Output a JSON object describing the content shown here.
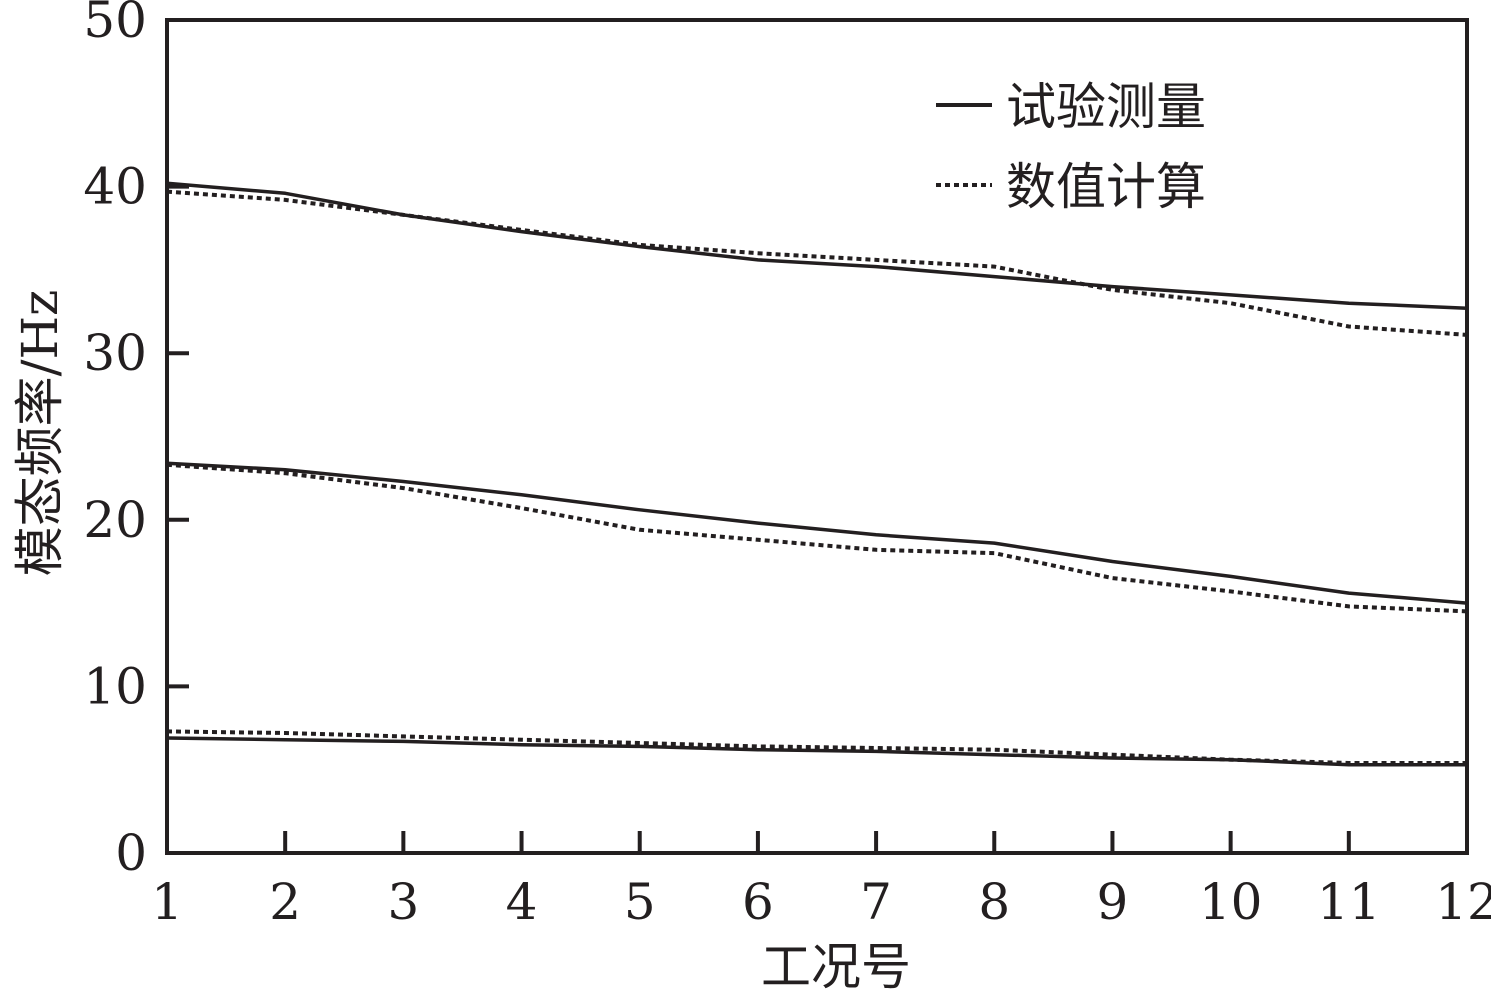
{
  "chart_data": {
    "type": "line",
    "title": "",
    "xlabel": "工况号",
    "ylabel": "模态频率/Hz",
    "xlim": [
      1,
      12
    ],
    "ylim": [
      0,
      50
    ],
    "x_ticks": [
      1,
      2,
      3,
      4,
      5,
      6,
      7,
      8,
      9,
      10,
      11,
      12
    ],
    "y_ticks": [
      0,
      10,
      20,
      30,
      40,
      50
    ],
    "grid": false,
    "legend_position": "top-right",
    "legend": [
      {
        "label": "试验测量",
        "style": "solid"
      },
      {
        "label": "数值计算",
        "style": "dotted"
      }
    ],
    "x": [
      1,
      2,
      3,
      4,
      5,
      6,
      7,
      8,
      9,
      10,
      11,
      12
    ],
    "series": [
      {
        "legend": "试验测量",
        "mode": "mode-1",
        "style": "solid",
        "values": [
          6.9,
          6.8,
          6.7,
          6.5,
          6.4,
          6.2,
          6.1,
          5.9,
          5.7,
          5.6,
          5.3,
          5.3
        ]
      },
      {
        "legend": "数值计算",
        "mode": "mode-1",
        "style": "dotted",
        "values": [
          7.3,
          7.2,
          7.0,
          6.8,
          6.6,
          6.4,
          6.3,
          6.2,
          5.9,
          5.6,
          5.4,
          5.4
        ]
      },
      {
        "legend": "试验测量",
        "mode": "mode-2",
        "style": "solid",
        "values": [
          23.4,
          23.0,
          22.3,
          21.5,
          20.6,
          19.8,
          19.1,
          18.6,
          17.5,
          16.6,
          15.6,
          15.0
        ]
      },
      {
        "legend": "数值计算",
        "mode": "mode-2",
        "style": "dotted",
        "values": [
          23.3,
          22.8,
          21.9,
          20.7,
          19.4,
          18.8,
          18.2,
          18.0,
          16.5,
          15.7,
          14.8,
          14.5
        ]
      },
      {
        "legend": "试验测量",
        "mode": "mode-3",
        "style": "solid",
        "values": [
          40.2,
          39.6,
          38.3,
          37.3,
          36.4,
          35.6,
          35.2,
          34.6,
          34.0,
          33.5,
          33.0,
          32.7
        ]
      },
      {
        "legend": "数值计算",
        "mode": "mode-3",
        "style": "dotted",
        "values": [
          39.7,
          39.2,
          38.3,
          37.4,
          36.5,
          36.0,
          35.6,
          35.2,
          33.8,
          33.0,
          31.6,
          31.1
        ]
      }
    ],
    "colors": {
      "line": "#231f20",
      "axis": "#231f20",
      "background": "#ffffff"
    }
  }
}
